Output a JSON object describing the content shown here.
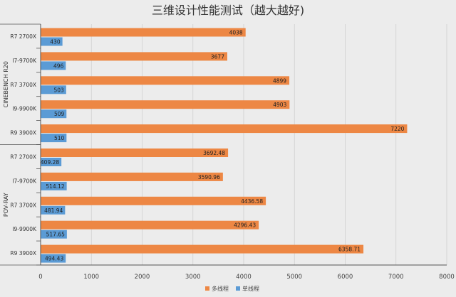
{
  "colors": {
    "multi": "#ed8744",
    "single": "#5b9bd5",
    "grid": "#d0d0d0",
    "axis": "#555555",
    "background": "#ececec"
  },
  "chart_data": {
    "type": "bar",
    "orientation": "horizontal",
    "title": "三维设计性能测试（越大越好)",
    "xlim": [
      0,
      8000
    ],
    "xticks": [
      "0",
      "1000",
      "2000",
      "3000",
      "4000",
      "5000",
      "6000",
      "7000",
      "8000"
    ],
    "grid": true,
    "legend_position": "bottom",
    "groups": [
      {
        "name": "CINEBENCH R20",
        "categories": [
          "R7 2700X",
          "I7-9700K",
          "R7 3700X",
          "I9-9900K",
          "R9 3900X"
        ],
        "multi": [
          4038,
          3677,
          4899,
          4903,
          7220
        ],
        "single": [
          430,
          496,
          503,
          509,
          510
        ],
        "multi_labels": [
          "4038",
          "3677",
          "4899",
          "4903",
          "7220"
        ],
        "single_labels": [
          "430",
          "496",
          "503",
          "509",
          "510"
        ]
      },
      {
        "name": "POV-RAY",
        "categories": [
          "R7 2700X",
          "I7-9700K",
          "R7 3700X",
          "I9-9900K",
          "R9 3900X"
        ],
        "multi": [
          3692.48,
          3590.96,
          4436.58,
          4296.43,
          6358.71
        ],
        "single": [
          409.28,
          514.12,
          481.94,
          517.65,
          494.43
        ],
        "multi_labels": [
          "3692.48",
          "3590.96",
          "4436.58",
          "4296.43",
          "6358.71"
        ],
        "single_labels": [
          "409.28",
          "514.12",
          "481.94",
          "517.65",
          "494.43"
        ]
      }
    ],
    "series": [
      {
        "name": "多线程",
        "key": "multi"
      },
      {
        "name": "单线程",
        "key": "single"
      }
    ]
  }
}
